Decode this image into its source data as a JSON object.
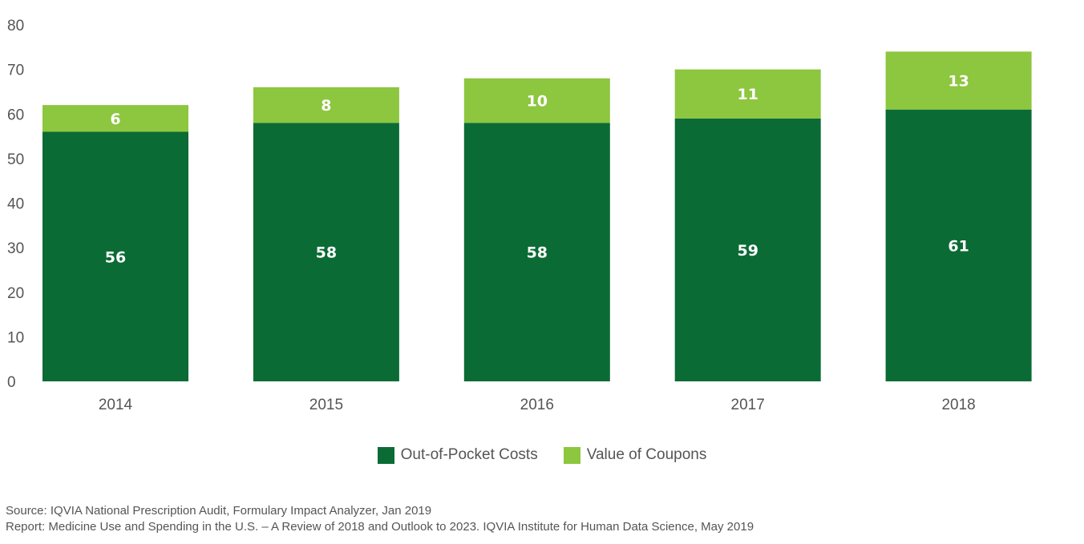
{
  "chart_data": {
    "type": "bar",
    "stacked": true,
    "categories": [
      "2014",
      "2015",
      "2016",
      "2017",
      "2018"
    ],
    "series": [
      {
        "name": "Out-of-Pocket Costs",
        "values": [
          56,
          58,
          58,
          59,
          61
        ],
        "labels": [
          "56",
          "58",
          "58",
          "59",
          "61"
        ],
        "color": "#0b6b35"
      },
      {
        "name": "Value of Coupons",
        "values": [
          6,
          8,
          10,
          11,
          13
        ],
        "labels": [
          "6",
          "8",
          "10",
          "11",
          "13"
        ],
        "color": "#8dc63f"
      }
    ],
    "ylim": [
      0,
      80
    ],
    "yticks": [
      "0",
      "10",
      "20",
      "30",
      "40",
      "50",
      "60",
      "70",
      "80"
    ],
    "grid": false,
    "legend_position": "bottom"
  },
  "legend": {
    "items": [
      {
        "label": "Out-of-Pocket Costs",
        "color": "#0b6b35"
      },
      {
        "label": "Value of Coupons",
        "color": "#8dc63f"
      }
    ]
  },
  "source": {
    "line1": "Source: IQVIA National Prescription Audit, Formulary Impact Analyzer, Jan 2019",
    "line2": "Report: Medicine Use and Spending in the U.S. – A Review of 2018 and Outlook to 2023. IQVIA Institute for Human Data Science, May 2019"
  }
}
